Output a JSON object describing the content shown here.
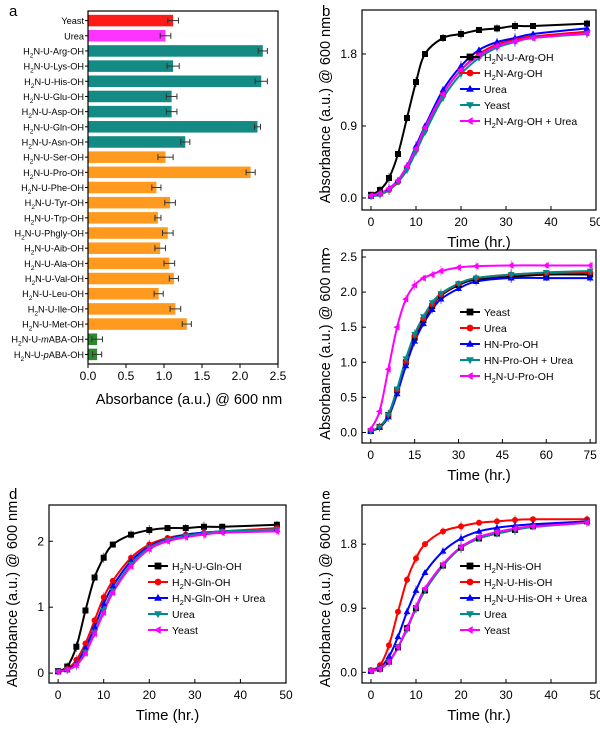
{
  "chart_data": [
    {
      "type": "bar",
      "panel": "a",
      "orientation": "horizontal",
      "xlabel": "Absorbance (a.u.) @ 600 nm",
      "xlim": [
        0,
        2.5
      ],
      "xticks": [
        "0.0",
        "0.5",
        "1.0",
        "1.5",
        "2.0",
        "2.5"
      ],
      "categories": [
        "Yeast",
        "Urea",
        "H2N-U-Arg-OH",
        "H2N-U-Lys-OH",
        "H2N-U-His-OH",
        "H2N-U-Glu-OH",
        "H2N-U-Asp-OH",
        "H2N-U-Gln-OH",
        "H2N-U-Asn-OH",
        "H2N-U-Ser-OH",
        "H2N-U-Pro-OH",
        "H2N-U-Phe-OH",
        "H2N-U-Tyr-OH",
        "H2N-U-Trp-OH",
        "H2N-U-Phgly-OH",
        "H2N-U-Aib-OH",
        "H2N-U-Ala-OH",
        "H2N-U-Val-OH",
        "H2N-U-Leu-OH",
        "H2N-U-Ile-OH",
        "H2N-U-Met-OH",
        "H2N-U-mABA-OH",
        "H2N-U-pABA-OH"
      ],
      "values": [
        1.12,
        1.02,
        2.3,
        1.12,
        2.28,
        1.1,
        1.1,
        2.23,
        1.28,
        1.02,
        2.14,
        0.9,
        1.08,
        0.92,
        1.05,
        0.95,
        1.07,
        1.13,
        0.93,
        1.15,
        1.3,
        0.12,
        0.12
      ],
      "errors": [
        0.07,
        0.07,
        0.06,
        0.08,
        0.08,
        0.07,
        0.07,
        0.04,
        0.06,
        0.1,
        0.06,
        0.06,
        0.07,
        0.04,
        0.07,
        0.07,
        0.07,
        0.06,
        0.06,
        0.07,
        0.06,
        0.07,
        0.06
      ],
      "groups": [
        "yeast",
        "urea",
        "polar",
        "polar",
        "polar",
        "polar",
        "polar",
        "polar",
        "polar",
        "nonpolar",
        "nonpolar",
        "nonpolar",
        "nonpolar",
        "nonpolar",
        "nonpolar",
        "nonpolar",
        "nonpolar",
        "nonpolar",
        "nonpolar",
        "nonpolar",
        "nonpolar",
        "aromatic-amine",
        "aromatic-amine"
      ],
      "colors": {
        "yeast": "#ff1a1a",
        "urea": "#ff33ff",
        "polar": "#138a84",
        "nonpolar": "#ff9a1f",
        "aromatic-amine": "#2c8b2c"
      }
    },
    {
      "type": "line",
      "panel": "b",
      "xlabel": "Time (hr.)",
      "ylabel": "Absorbance (a.u.) @ 600 nm",
      "xlim": [
        -2,
        50
      ],
      "ylim": [
        -0.15,
        2.35
      ],
      "xticks": [
        0,
        10,
        20,
        30,
        40,
        50
      ],
      "yticks": [
        0.0,
        0.9,
        1.8
      ],
      "x": [
        0,
        2,
        4,
        6,
        8,
        10,
        12,
        16,
        20,
        24,
        28,
        32,
        36,
        48
      ],
      "series": [
        {
          "name": "H2N-U-Arg-OH",
          "color": "#000000",
          "marker": "square",
          "values": [
            0.04,
            0.1,
            0.25,
            0.55,
            1.0,
            1.45,
            1.8,
            2.0,
            2.05,
            2.1,
            2.12,
            2.15,
            2.15,
            2.18
          ]
        },
        {
          "name": "H2N-Arg-OH",
          "color": "#ff0000",
          "marker": "circle",
          "values": [
            0.02,
            0.05,
            0.1,
            0.2,
            0.38,
            0.6,
            0.85,
            1.3,
            1.6,
            1.8,
            1.92,
            1.98,
            2.02,
            2.08
          ]
        },
        {
          "name": "Urea",
          "color": "#0000ff",
          "marker": "triangle-up",
          "values": [
            0.02,
            0.05,
            0.12,
            0.22,
            0.4,
            0.65,
            0.9,
            1.35,
            1.65,
            1.85,
            1.95,
            2.0,
            2.05,
            2.12
          ]
        },
        {
          "name": "Yeast",
          "color": "#008b8b",
          "marker": "triangle-down",
          "values": [
            0.02,
            0.04,
            0.1,
            0.2,
            0.35,
            0.58,
            0.82,
            1.25,
            1.55,
            1.75,
            1.88,
            1.95,
            2.0,
            2.05
          ]
        },
        {
          "name": "H2N-Arg-OH + Urea",
          "color": "#ff00ff",
          "marker": "triangle-left",
          "values": [
            0.03,
            0.06,
            0.12,
            0.22,
            0.4,
            0.62,
            0.88,
            1.3,
            1.6,
            1.78,
            1.9,
            1.96,
            2.0,
            2.06
          ]
        }
      ]
    },
    {
      "type": "line",
      "panel": "c",
      "xlabel": "Time (hr.)",
      "ylabel": "Absorbance (a.u.) @ 600 nm",
      "xlim": [
        -3,
        77
      ],
      "ylim": [
        -0.15,
        2.6
      ],
      "xticks": [
        0,
        15,
        30,
        45,
        60,
        75
      ],
      "yticks": [
        0.0,
        0.5,
        1.0,
        1.5,
        2.0,
        2.5
      ],
      "x": [
        0,
        3,
        6,
        9,
        12,
        15,
        18,
        21,
        24,
        30,
        36,
        48,
        60,
        75
      ],
      "series": [
        {
          "name": "Yeast",
          "color": "#000000",
          "marker": "square",
          "values": [
            0.02,
            0.08,
            0.25,
            0.6,
            1.0,
            1.35,
            1.6,
            1.8,
            1.95,
            2.1,
            2.18,
            2.22,
            2.25,
            2.25
          ]
        },
        {
          "name": "Urea",
          "color": "#ff0000",
          "marker": "circle",
          "values": [
            0.02,
            0.08,
            0.25,
            0.6,
            1.0,
            1.38,
            1.62,
            1.82,
            1.96,
            2.12,
            2.2,
            2.25,
            2.27,
            2.28
          ]
        },
        {
          "name": "HN-Pro-OH",
          "color": "#0000ff",
          "marker": "triangle-up",
          "values": [
            0.02,
            0.07,
            0.22,
            0.55,
            0.95,
            1.3,
            1.55,
            1.75,
            1.9,
            2.05,
            2.15,
            2.2,
            2.2,
            2.2
          ]
        },
        {
          "name": "HN-Pro-OH + Urea",
          "color": "#008b8b",
          "marker": "triangle-down",
          "values": [
            0.02,
            0.08,
            0.25,
            0.62,
            1.05,
            1.4,
            1.65,
            1.85,
            1.98,
            2.12,
            2.2,
            2.25,
            2.28,
            2.3
          ]
        },
        {
          "name": "H2N-U-Pro-OH",
          "color": "#ff00ff",
          "marker": "triangle-left",
          "values": [
            0.05,
            0.3,
            0.9,
            1.5,
            1.9,
            2.1,
            2.2,
            2.25,
            2.3,
            2.35,
            2.37,
            2.38,
            2.38,
            2.38
          ]
        }
      ]
    },
    {
      "type": "line",
      "panel": "d",
      "xlabel": "Time (hr.)",
      "ylabel": "Absorbance (a.u.) @ 600 nm",
      "xlim": [
        -2,
        50
      ],
      "ylim": [
        -0.15,
        2.55
      ],
      "xticks": [
        0,
        10,
        20,
        30,
        40,
        50
      ],
      "yticks": [
        0,
        1,
        2
      ],
      "x": [
        0,
        2,
        4,
        6,
        8,
        10,
        12,
        16,
        20,
        24,
        28,
        32,
        36,
        48
      ],
      "series": [
        {
          "name": "H2N-U-Gln-OH",
          "color": "#000000",
          "marker": "square",
          "values": [
            0.03,
            0.1,
            0.4,
            0.95,
            1.45,
            1.75,
            1.95,
            2.1,
            2.17,
            2.2,
            2.2,
            2.22,
            2.22,
            2.25
          ]
        },
        {
          "name": "H2N-Gln-OH",
          "color": "#ff0000",
          "marker": "circle",
          "values": [
            0.02,
            0.06,
            0.2,
            0.45,
            0.8,
            1.15,
            1.4,
            1.75,
            1.95,
            2.05,
            2.1,
            2.13,
            2.15,
            2.2
          ]
        },
        {
          "name": "H2N-Gln-OH + Urea",
          "color": "#0000ff",
          "marker": "triangle-up",
          "values": [
            0.02,
            0.05,
            0.15,
            0.38,
            0.7,
            1.05,
            1.32,
            1.7,
            1.92,
            2.03,
            2.1,
            2.13,
            2.15,
            2.18
          ]
        },
        {
          "name": "Urea",
          "color": "#008b8b",
          "marker": "triangle-down",
          "values": [
            0.02,
            0.05,
            0.12,
            0.32,
            0.62,
            0.95,
            1.25,
            1.65,
            1.9,
            2.02,
            2.08,
            2.12,
            2.15,
            2.18
          ]
        },
        {
          "name": "Yeast",
          "color": "#ff00ff",
          "marker": "triangle-left",
          "values": [
            0.02,
            0.05,
            0.12,
            0.3,
            0.6,
            0.92,
            1.22,
            1.62,
            1.88,
            2.0,
            2.06,
            2.1,
            2.13,
            2.15
          ]
        }
      ]
    },
    {
      "type": "line",
      "panel": "e",
      "xlabel": "Time (hr.)",
      "ylabel": "Absorbance (a.u.) @ 600 nm",
      "xlim": [
        -2,
        50
      ],
      "ylim": [
        -0.15,
        2.35
      ],
      "xticks": [
        0,
        10,
        20,
        30,
        40,
        50
      ],
      "yticks": [
        0.0,
        0.9,
        1.8
      ],
      "x": [
        0,
        2,
        4,
        6,
        8,
        10,
        12,
        16,
        20,
        24,
        28,
        32,
        36,
        48
      ],
      "series": [
        {
          "name": "H2N-His-OH",
          "color": "#000000",
          "marker": "square",
          "values": [
            0.02,
            0.05,
            0.15,
            0.35,
            0.62,
            0.9,
            1.15,
            1.5,
            1.75,
            1.88,
            1.95,
            2.0,
            2.05,
            2.12
          ]
        },
        {
          "name": "H2N-U-His-OH",
          "color": "#ff0000",
          "marker": "circle",
          "values": [
            0.03,
            0.1,
            0.38,
            0.85,
            1.3,
            1.6,
            1.8,
            1.98,
            2.05,
            2.1,
            2.12,
            2.14,
            2.15,
            2.15
          ]
        },
        {
          "name": "H2N-U-His-OH + Urea",
          "color": "#0000ff",
          "marker": "triangle-up",
          "values": [
            0.02,
            0.07,
            0.22,
            0.5,
            0.85,
            1.15,
            1.4,
            1.7,
            1.88,
            1.98,
            2.03,
            2.06,
            2.08,
            2.12
          ]
        },
        {
          "name": "Urea",
          "color": "#008b8b",
          "marker": "triangle-down",
          "values": [
            0.02,
            0.05,
            0.15,
            0.35,
            0.6,
            0.9,
            1.15,
            1.5,
            1.75,
            1.88,
            1.95,
            2.0,
            2.04,
            2.1
          ]
        },
        {
          "name": "Yeast",
          "color": "#ff00ff",
          "marker": "triangle-left",
          "values": [
            0.02,
            0.05,
            0.15,
            0.35,
            0.62,
            0.92,
            1.18,
            1.52,
            1.76,
            1.9,
            1.97,
            2.02,
            2.05,
            2.1
          ]
        }
      ]
    }
  ]
}
